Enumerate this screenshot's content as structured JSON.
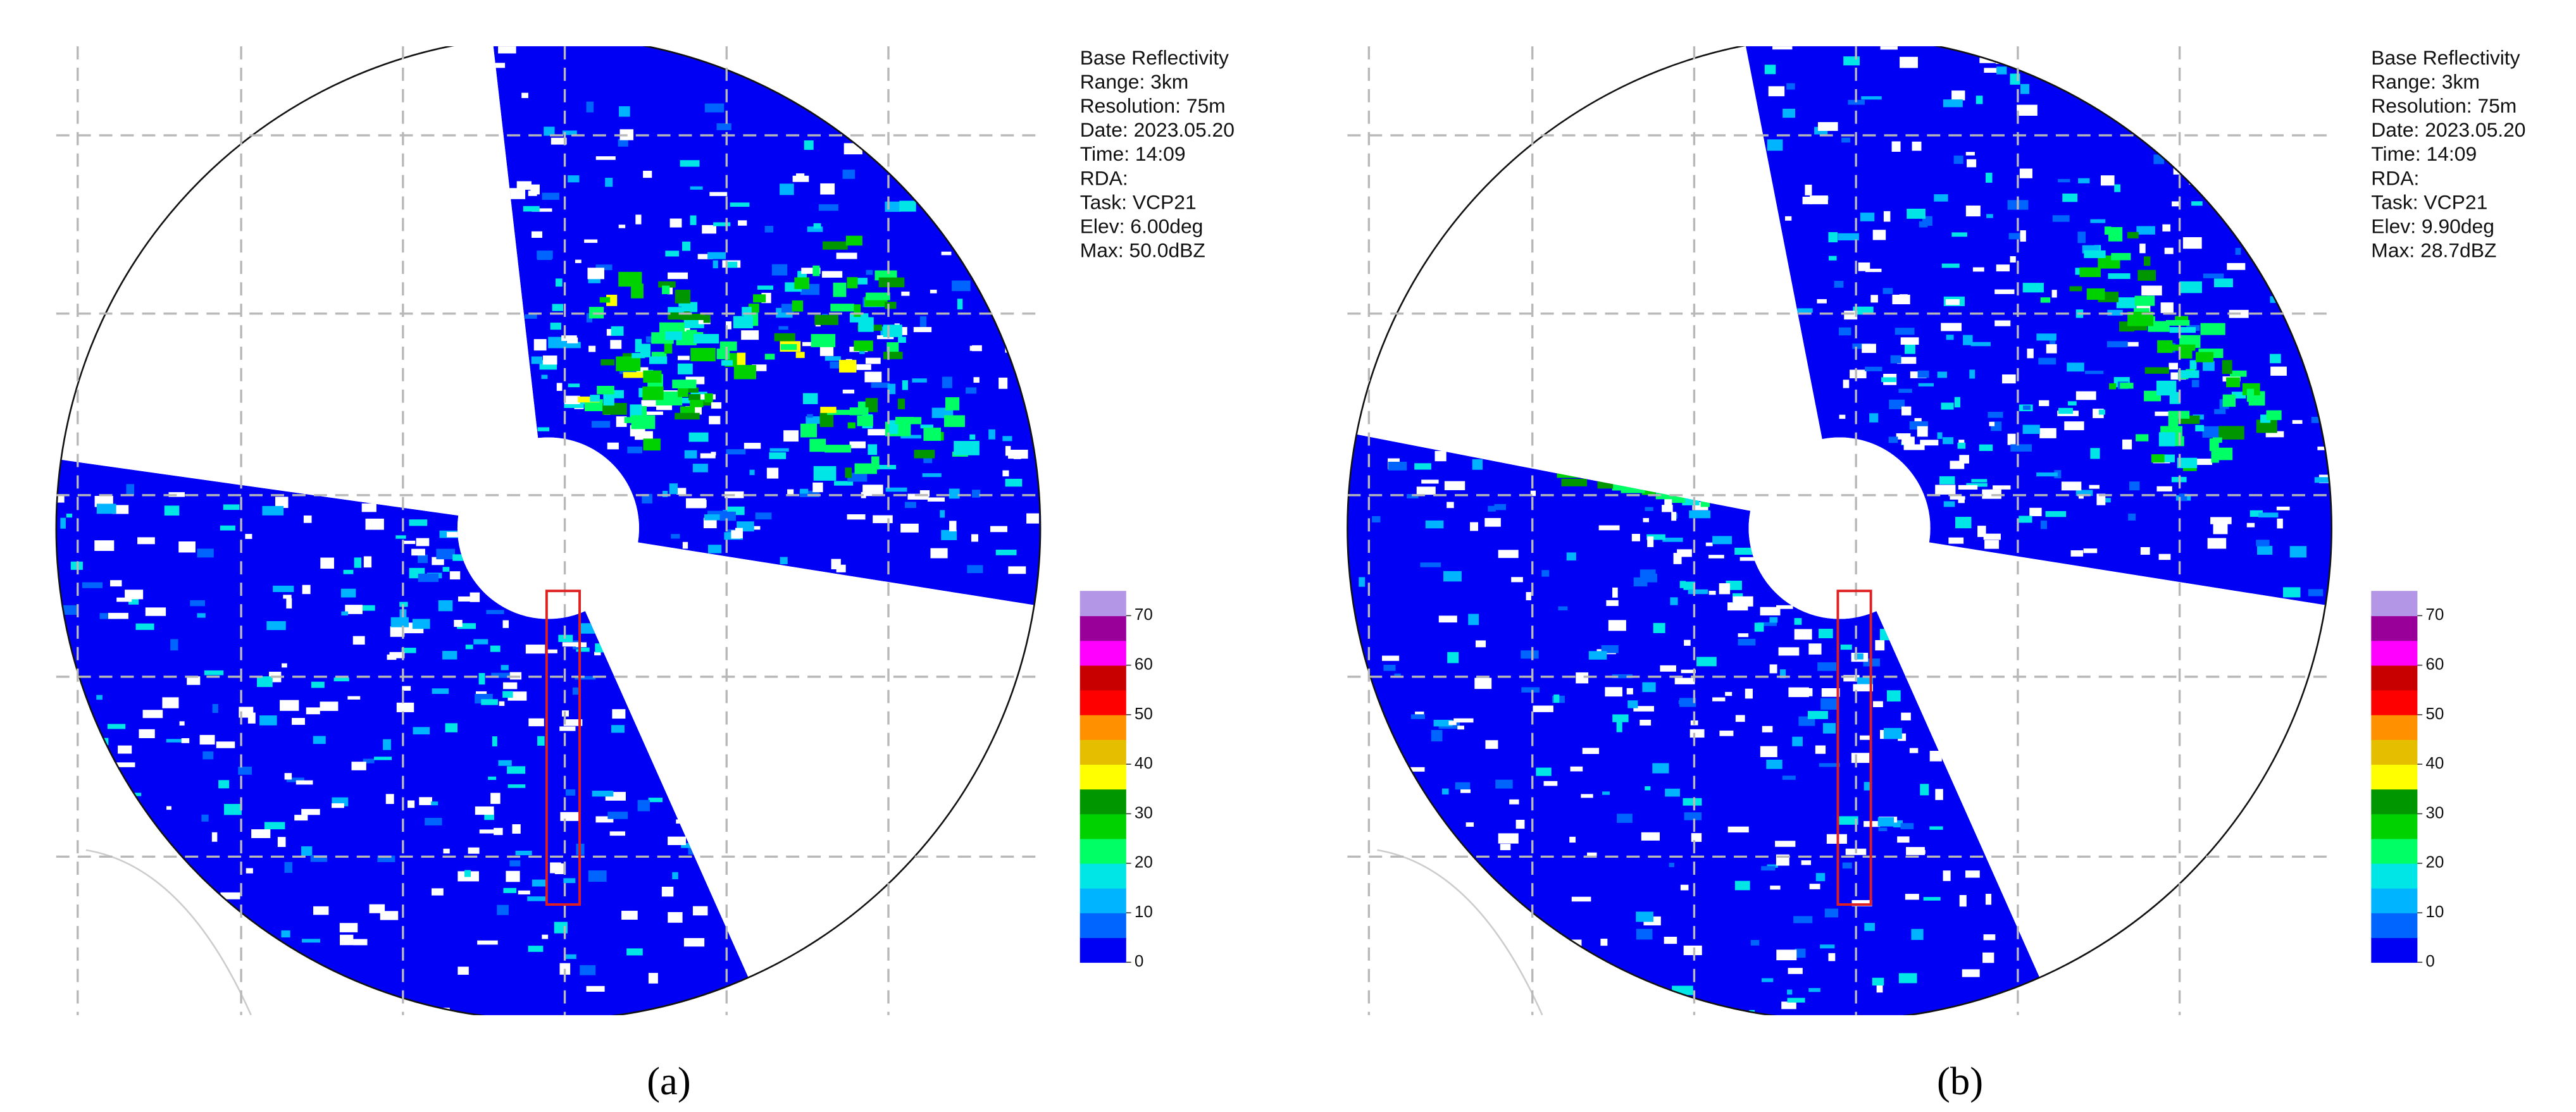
{
  "panels": [
    {
      "caption": "(a)",
      "info": [
        "Base Reflectivity",
        "Range: 3km",
        "Resolution: 75m",
        "Date: 2023.05.20",
        "Time: 14:09",
        "RDA:",
        "Task: VCP21",
        "Elev: 6.00deg",
        "Max: 50.0dBZ"
      ],
      "colorbar": {
        "ticks": [
          0,
          10,
          20,
          30,
          40,
          50,
          60,
          70
        ],
        "colors": [
          "#0000f5",
          "#0064ff",
          "#00b4ff",
          "#00e6e6",
          "#00ff64",
          "#00d200",
          "#009600",
          "#ffff00",
          "#e6be00",
          "#ff9000",
          "#ff0000",
          "#c80000",
          "#ff00ff",
          "#990099",
          "#b496e6"
        ]
      }
    },
    {
      "caption": "(b)",
      "info": [
        "Base Reflectivity",
        "Range: 3km",
        "Resolution: 75m",
        "Date: 2023.05.20",
        "Time: 14:09",
        "RDA:",
        "Task: VCP21",
        "Elev: 9.90deg",
        "Max: 28.7dBZ"
      ],
      "colorbar": {
        "ticks": [
          0,
          10,
          20,
          30,
          40,
          50,
          60,
          70
        ],
        "colors": [
          "#0000f5",
          "#0064ff",
          "#00b4ff",
          "#00e6e6",
          "#00ff64",
          "#00d200",
          "#009600",
          "#ffff00",
          "#e6be00",
          "#ff9000",
          "#ff0000",
          "#c80000",
          "#ff00ff",
          "#990099",
          "#b496e6"
        ]
      }
    }
  ]
}
